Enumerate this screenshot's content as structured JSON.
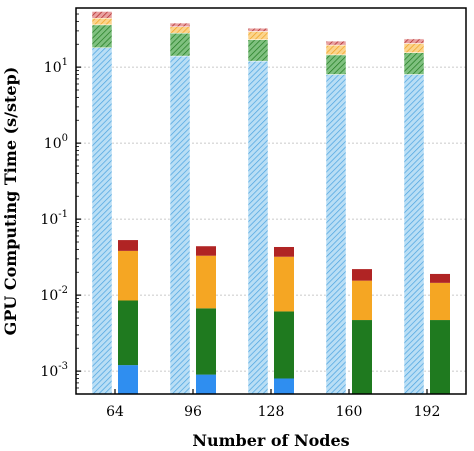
{
  "chart_data": {
    "type": "bar",
    "subtype": "stacked, two bar groups per category, log y-axis",
    "title": "",
    "xlabel": "Number of Nodes",
    "ylabel": "GPU Computing Time (s/step)",
    "yscale": "log",
    "ylim": [
      0.0005,
      60
    ],
    "grid": "horizontal dotted",
    "categories": [
      "64",
      "96",
      "128",
      "160",
      "192"
    ],
    "y_ticks": [
      {
        "base": "10",
        "exp": "-3"
      },
      {
        "base": "10",
        "exp": "-2"
      },
      {
        "base": "10",
        "exp": "-1"
      },
      {
        "base": "10",
        "exp": "0"
      },
      {
        "base": "10",
        "exp": "1"
      }
    ],
    "groups": [
      {
        "pattern": "hatched",
        "segments": [
          {
            "color": "#9ed0f0",
            "values": [
              18,
              14,
              12,
              8.0,
              8.0
            ]
          },
          {
            "color": "#2a8a2a",
            "values": [
              18,
              14,
              11,
              6.5,
              7.5
            ]
          },
          {
            "color": "#f5a623",
            "values": [
              8,
              6,
              6.5,
              5.0,
              5.0
            ]
          },
          {
            "color": "#b02424",
            "values": [
              10,
              4,
              3,
              2.5,
              3
            ]
          }
        ]
      },
      {
        "pattern": "solid",
        "segments": [
          {
            "color": "#2f8ef0",
            "values": [
              0.0012,
              0.0009,
              0.0008,
              0,
              0
            ]
          },
          {
            "color": "#1f7a1f",
            "values": [
              0.0073,
              0.0058,
              0.0053,
              0.0047,
              0.0047
            ]
          },
          {
            "color": "#f5a623",
            "values": [
              0.0297,
              0.0263,
              0.0259,
              0.0108,
              0.0098
            ]
          },
          {
            "color": "#b02424",
            "values": [
              0.0148,
              0.011,
              0.011,
              0.0065,
              0.0045
            ]
          }
        ]
      }
    ],
    "colors": {
      "grid": "#b8b8b8",
      "axis": "#000000"
    }
  }
}
